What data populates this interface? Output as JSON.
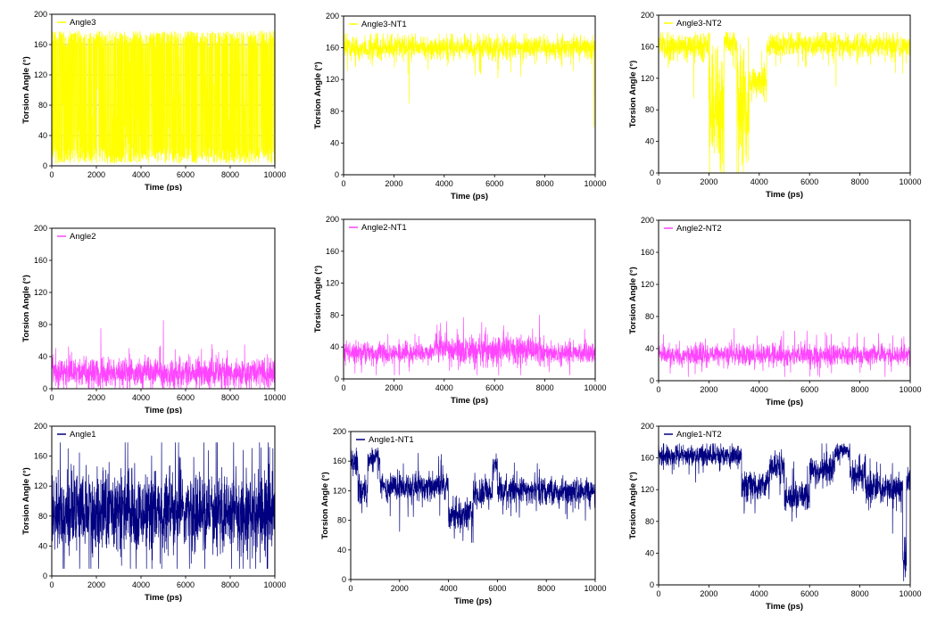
{
  "figure": {
    "xlabel": "Time (ps)",
    "ylabel": "Torsion Angle (°)"
  },
  "colors": {
    "angle3": "#ffff00",
    "angle2": "#ff44ff",
    "angle1": "#000080"
  },
  "chart_data": [
    {
      "type": "line",
      "title": "",
      "legend": "Angle3",
      "legend_placement": "top-left",
      "color_key": "angle3",
      "xlabel": "Time (ps)",
      "ylabel": "Torsion Angle (°)",
      "xlim": [
        0,
        10000
      ],
      "ylim": [
        0,
        200
      ],
      "xticks": [
        "0",
        "2000",
        "4000",
        "6000",
        "8000",
        "10000"
      ],
      "yticks": [
        "0",
        "40",
        "80",
        "120",
        "160",
        "200"
      ],
      "grid_y": [
        40,
        80,
        120,
        160
      ],
      "series": [
        {
          "name": "Angle3",
          "pattern": "flip",
          "x": [
            0,
            10000
          ],
          "base": 90,
          "low": 3,
          "high": 178
        }
      ]
    },
    {
      "type": "line",
      "title": "",
      "legend": "Angle3-NT1",
      "legend_placement": "top-left",
      "color_key": "angle3",
      "xlabel": "Time (ps)",
      "ylabel": "Torsion Angle (°)",
      "xlim": [
        0,
        10000
      ],
      "ylim": [
        0,
        200
      ],
      "xticks": [
        "0",
        "2000",
        "4000",
        "6000",
        "8000",
        "10000"
      ],
      "yticks": [
        "0",
        "40",
        "80",
        "120",
        "160",
        "200"
      ],
      "series": [
        {
          "name": "Angle3-NT1",
          "pattern": "segments",
          "x": [
            0,
            10000
          ],
          "segments": [
            [
              0,
              10000,
              160,
              10,
              120,
              178
            ]
          ],
          "spikes": [
            [
              2600,
              90
            ],
            [
              9950,
              60
            ]
          ]
        }
      ]
    },
    {
      "type": "line",
      "title": "",
      "legend": "Angle3-NT2",
      "legend_placement": "top-left",
      "color_key": "angle3",
      "xlabel": "Time (ps)",
      "ylabel": "Torsion Angle (°)",
      "xlim": [
        0,
        10000
      ],
      "ylim": [
        0,
        200
      ],
      "xticks": [
        "0",
        "2000",
        "4000",
        "6000",
        "8000",
        "10000"
      ],
      "yticks": [
        "0",
        "40",
        "80",
        "120",
        "160",
        "200"
      ],
      "series": [
        {
          "name": "Angle3-NT2",
          "pattern": "segments",
          "x": [
            0,
            10000
          ],
          "segments": [
            [
              0,
              2000,
              160,
              12,
              110,
              178
            ],
            [
              2000,
              2600,
              90,
              60,
              0,
              178
            ],
            [
              2600,
              3100,
              165,
              12,
              110,
              178
            ],
            [
              3100,
              3600,
              80,
              60,
              0,
              178
            ],
            [
              3600,
              4300,
              115,
              15,
              90,
              160
            ],
            [
              4300,
              10000,
              162,
              10,
              125,
              178
            ]
          ],
          "spikes": [
            [
              7050,
              110
            ],
            [
              1400,
              95
            ]
          ]
        }
      ]
    },
    {
      "type": "line",
      "title": "",
      "legend": "Angle2",
      "legend_placement": "top-left",
      "color_key": "angle2",
      "xlabel": "Time (ps)",
      "ylabel": "Torsion Angle (°)",
      "xlim": [
        0,
        10000
      ],
      "ylim": [
        0,
        200
      ],
      "xticks": [
        "0",
        "2000",
        "4000",
        "6000",
        "8000",
        "10000"
      ],
      "yticks": [
        "0",
        "40",
        "80",
        "120",
        "160",
        "200"
      ],
      "series": [
        {
          "name": "Angle2",
          "pattern": "segments",
          "x": [
            0,
            10000
          ],
          "segments": [
            [
              0,
              10000,
              20,
              12,
              0,
              70
            ]
          ],
          "spikes": [
            [
              5000,
              85
            ],
            [
              2200,
              75
            ]
          ]
        }
      ]
    },
    {
      "type": "line",
      "title": "",
      "legend": "Angle2-NT1",
      "legend_placement": "top-left",
      "color_key": "angle2",
      "xlabel": "Time (ps)",
      "ylabel": "Torsion Angle (°)",
      "xlim": [
        0,
        10000
      ],
      "ylim": [
        0,
        200
      ],
      "xticks": [
        "0",
        "2000",
        "4000",
        "6000",
        "8000",
        "10000"
      ],
      "yticks": [
        "0",
        "40",
        "80",
        "120",
        "160",
        "200"
      ],
      "series": [
        {
          "name": "Angle2-NT1",
          "pattern": "segments",
          "x": [
            0,
            10000
          ],
          "segments": [
            [
              0,
              3600,
              33,
              9,
              5,
              62
            ],
            [
              3600,
              4200,
              40,
              11,
              10,
              72
            ],
            [
              4200,
              7800,
              36,
              13,
              5,
              80
            ],
            [
              7800,
              10000,
              32,
              9,
              5,
              62
            ]
          ],
          "spikes": []
        }
      ]
    },
    {
      "type": "line",
      "title": "",
      "legend": "Angle2-NT2",
      "legend_placement": "top-left",
      "color_key": "angle2",
      "xlabel": "Time (ps)",
      "ylabel": "Torsion Angle (°)",
      "xlim": [
        0,
        10000
      ],
      "ylim": [
        0,
        200
      ],
      "xticks": [
        "0",
        "2000",
        "4000",
        "6000",
        "8000",
        "10000"
      ],
      "yticks": [
        "0",
        "40",
        "80",
        "120",
        "160",
        "200"
      ],
      "series": [
        {
          "name": "Angle2-NT2",
          "pattern": "segments",
          "x": [
            0,
            10000
          ],
          "segments": [
            [
              0,
              10000,
              32,
              9,
              5,
              62
            ]
          ],
          "spikes": [
            [
              3000,
              65
            ]
          ]
        }
      ]
    },
    {
      "type": "line",
      "title": "",
      "legend": "Angle1",
      "legend_placement": "top-left",
      "color_key": "angle1",
      "xlabel": "Time (ps)",
      "ylabel": "Torsion Angle (°)",
      "xlim": [
        0,
        10000
      ],
      "ylim": [
        0,
        200
      ],
      "xticks": [
        "0",
        "2000",
        "4000",
        "6000",
        "8000",
        "10000"
      ],
      "yticks": [
        "0",
        "40",
        "80",
        "120",
        "160",
        "200"
      ],
      "series": [
        {
          "name": "Angle1",
          "pattern": "segments",
          "x": [
            0,
            10000
          ],
          "segments": [
            [
              0,
              10000,
              85,
              35,
              10,
              178
            ]
          ],
          "spikes": []
        }
      ]
    },
    {
      "type": "line",
      "title": "",
      "legend": "Angle1-NT1",
      "legend_placement": "top-left",
      "color_key": "angle1",
      "xlabel": "Time (ps)",
      "ylabel": "Torsion Angle (°)",
      "xlim": [
        0,
        10000
      ],
      "ylim": [
        0,
        200
      ],
      "xticks": [
        "0",
        "2000",
        "4000",
        "6000",
        "8000",
        "10000"
      ],
      "yticks": [
        "0",
        "40",
        "80",
        "120",
        "160",
        "200"
      ],
      "series": [
        {
          "name": "Angle1-NT1",
          "pattern": "segments",
          "x": [
            0,
            10000
          ],
          "segments": [
            [
              0,
              300,
              160,
              12,
              120,
              178
            ],
            [
              300,
              700,
              120,
              15,
              90,
              165
            ],
            [
              700,
              1200,
              165,
              10,
              130,
              178
            ],
            [
              1200,
              4000,
              125,
              13,
              85,
              175
            ],
            [
              4000,
              5000,
              85,
              15,
              50,
              130
            ],
            [
              5000,
              5800,
              115,
              13,
              80,
              160
            ],
            [
              5800,
              6000,
              155,
              12,
              120,
              178
            ],
            [
              6000,
              10000,
              120,
              12,
              80,
              178
            ]
          ],
          "spikes": [
            [
              2000,
              65
            ],
            [
              5000,
              50
            ]
          ]
        }
      ]
    },
    {
      "type": "line",
      "title": "",
      "legend": "Angle1-NT2",
      "legend_placement": "top-left",
      "color_key": "angle1",
      "xlabel": "Time (ps)",
      "ylabel": "Torsion Angle (°)",
      "xlim": [
        0,
        10000
      ],
      "ylim": [
        0,
        200
      ],
      "xticks": [
        "0",
        "2000",
        "4000",
        "6000",
        "8000",
        "10000"
      ],
      "yticks": [
        "0",
        "40",
        "80",
        "120",
        "160",
        "200"
      ],
      "series": [
        {
          "name": "Angle1-NT2",
          "pattern": "segments",
          "x": [
            0,
            10000
          ],
          "segments": [
            [
              0,
              3300,
              163,
              9,
              120,
              178
            ],
            [
              3300,
              4400,
              125,
              13,
              80,
              170
            ],
            [
              4400,
              5000,
              150,
              12,
              110,
              178
            ],
            [
              5000,
              6000,
              112,
              13,
              80,
              160
            ],
            [
              6000,
              7000,
              145,
              13,
              100,
              178
            ],
            [
              7000,
              7600,
              168,
              7,
              130,
              178
            ],
            [
              7600,
              8200,
              140,
              13,
              100,
              178
            ],
            [
              8200,
              9700,
              122,
              15,
              80,
              170
            ],
            [
              9700,
              9850,
              30,
              20,
              5,
              60
            ],
            [
              9850,
              10000,
              130,
              15,
              90,
              170
            ]
          ],
          "spikes": [
            [
              9800,
              10
            ],
            [
              3400,
              90
            ],
            [
              9300,
              65
            ]
          ]
        }
      ]
    }
  ]
}
